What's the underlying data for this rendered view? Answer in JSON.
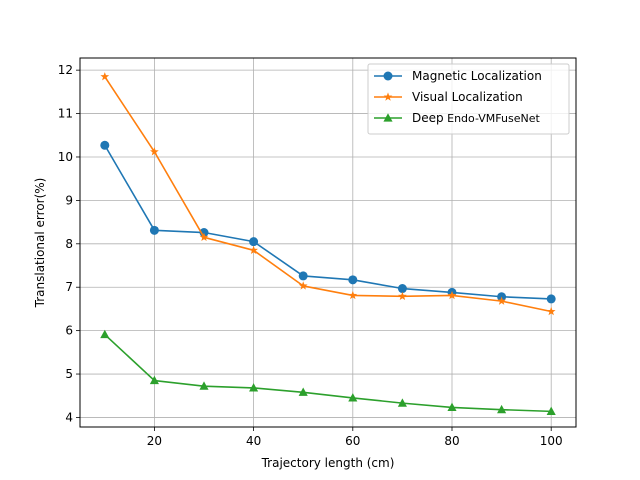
{
  "chart_data": {
    "type": "line",
    "xlabel": "Trajectory length (cm)",
    "ylabel": "Translational error(%)",
    "xlim": [
      5,
      105
    ],
    "ylim": [
      3.78,
      12.28
    ],
    "xticks": [
      20,
      40,
      60,
      80,
      100
    ],
    "yticks": [
      4,
      5,
      6,
      7,
      8,
      9,
      10,
      11,
      12
    ],
    "grid": true,
    "legend_position": "top-right",
    "x": [
      10,
      20,
      30,
      40,
      50,
      60,
      70,
      80,
      90,
      100
    ],
    "series": [
      {
        "name": "Magnetic Localization",
        "color": "#1f77b4",
        "marker": "circle",
        "values": [
          10.27,
          8.31,
          8.26,
          8.05,
          7.26,
          7.17,
          6.97,
          6.88,
          6.78,
          6.73
        ]
      },
      {
        "name": "Visual Localization",
        "color": "#ff7f0e",
        "marker": "star",
        "values": [
          11.85,
          10.12,
          8.15,
          7.85,
          7.03,
          6.81,
          6.79,
          6.81,
          6.68,
          6.44
        ]
      },
      {
        "name": "Deep",
        "name_suffix": "Endo-VMFuseNet",
        "color": "#2ca02c",
        "marker": "triangle",
        "values": [
          5.91,
          4.85,
          4.72,
          4.68,
          4.58,
          4.45,
          4.33,
          4.23,
          4.18,
          4.14
        ]
      }
    ]
  }
}
